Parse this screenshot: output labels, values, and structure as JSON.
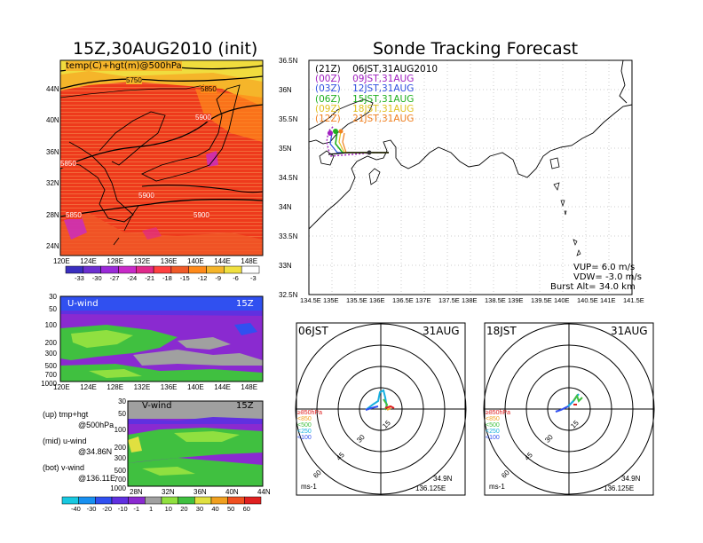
{
  "titles": {
    "left": "15Z,30AUG2010 (init)",
    "right": "Sonde Tracking Forecast"
  },
  "upper_map": {
    "label": "temp(C)+hgt(m)@500hPa",
    "lat_ticks": [
      "44N",
      "40N",
      "36N",
      "32N",
      "28N",
      "24N"
    ],
    "lon_ticks": [
      "120E",
      "124E",
      "128E",
      "132E",
      "136E",
      "140E",
      "144E",
      "148E"
    ],
    "contour_labels": [
      "5750",
      "5850",
      "5900",
      "5850",
      "5900",
      "5850",
      "5900"
    ],
    "colorbar": [
      "-33",
      "-30",
      "-27",
      "-24",
      "-21",
      "-18",
      "-15",
      "-12",
      "-9",
      "-6",
      "-3"
    ],
    "colors": [
      "#3a2fbf",
      "#6b2fd0",
      "#9a2ad8",
      "#c82ac8",
      "#e02a8a",
      "#ff4040",
      "#f05a28",
      "#ff8a1a",
      "#f5b52a",
      "#f0e040",
      "#ffffff"
    ]
  },
  "u_panel": {
    "label": "U-wind",
    "time": "15Z",
    "p_ticks": [
      "30",
      "50",
      "100",
      "200",
      "300",
      "500",
      "700",
      "1000"
    ],
    "lon_ticks": [
      "120E",
      "124E",
      "128E",
      "132E",
      "136E",
      "140E",
      "144E",
      "148E"
    ]
  },
  "v_panel": {
    "label": "V-wind",
    "time": "15Z",
    "p_ticks": [
      "30",
      "50",
      "100",
      "200",
      "300",
      "500",
      "700",
      "1000"
    ],
    "lat_ticks": [
      "28N",
      "32N",
      "36N",
      "40N",
      "44N"
    ]
  },
  "legend_text": {
    "up1": "(up) tmp+hgt",
    "up2": "@500hPa",
    "mid1": "(mid) u-wind",
    "mid2": "@34.86N",
    "bot1": "(bot) v-wind",
    "bot2": "@136.11E"
  },
  "wind_colorbar": {
    "labels": [
      "-40",
      "-30",
      "-20",
      "-10",
      "-1",
      "1",
      "10",
      "20",
      "30",
      "40",
      "50",
      "60"
    ],
    "colors": [
      "#18c8e0",
      "#1890f0",
      "#3050f0",
      "#6030e0",
      "#8a2ad0",
      "#a0a0a0",
      "#90e040",
      "#40c040",
      "#e0e040",
      "#f0a020",
      "#f05020",
      "#e02020"
    ]
  },
  "track_map": {
    "lat_ticks": [
      "36.5N",
      "36N",
      "35.5N",
      "35N",
      "34.5N",
      "34N",
      "33.5N",
      "33N",
      "32.5N"
    ],
    "lon_ticks": [
      "134.5E",
      "135E",
      "135.5E",
      "136E",
      "136.5E",
      "137E",
      "137.5E",
      "138E",
      "138.5E",
      "139E",
      "139.5E",
      "140E",
      "140.5E",
      "141E",
      "141.5E"
    ],
    "legend": [
      {
        "tag": "(21Z)",
        "text": "06JST,31AUG2010",
        "color": "#000000"
      },
      {
        "tag": "(00Z)",
        "text": "09JST,31AUG",
        "color": "#a020c0"
      },
      {
        "tag": "(03Z)",
        "text": "12JST,31AUG",
        "color": "#3050e0"
      },
      {
        "tag": "(06Z)",
        "text": "15JST,31AUG",
        "color": "#20b020"
      },
      {
        "tag": "(09Z)",
        "text": "18JST,31AUG",
        "color": "#e0c020"
      },
      {
        "tag": "(12Z)",
        "text": "21JST,31AUG",
        "color": "#f08020"
      }
    ],
    "params": [
      "VUP= 6.0 m/s",
      "VDW= -3.0 m/s",
      "Burst Alt= 34.0 km"
    ]
  },
  "hodo_left": {
    "time": "06JST",
    "date": "31AUG",
    "rings": [
      "15",
      "30",
      "45",
      "60"
    ],
    "levels": [
      "≥850hPa",
      "<850",
      "<500",
      "<250",
      "<100"
    ],
    "level_colors": [
      "#e02020",
      "#f0a020",
      "#40c040",
      "#18b0e0",
      "#3050f0"
    ],
    "unit": "ms-1",
    "lat": "34.9N",
    "lon": "136.125E"
  },
  "hodo_right": {
    "time": "18JST",
    "date": "31AUG",
    "rings": [
      "15",
      "30",
      "45",
      "60"
    ],
    "levels": [
      "≥850hPa",
      "<850",
      "<500",
      "<250",
      "<100"
    ],
    "level_colors": [
      "#e02020",
      "#f0a020",
      "#40c040",
      "#18b0e0",
      "#3050f0"
    ],
    "unit": "ms-1",
    "lat": "34.9N",
    "lon": "136.125E"
  }
}
